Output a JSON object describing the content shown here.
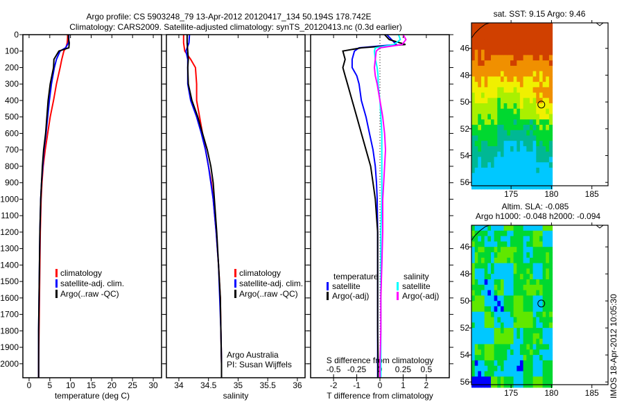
{
  "header": {
    "title_line1": "Argo profile: CS 5903248_79 13-Apr-2012 20120417_134 50.194S 178.742E",
    "title_line2": "Climatology: CARS2009. Satellite-adjusted climatology: synTS_20120413.nc (0.3d earlier)"
  },
  "side_stamp": "IMOS 18-Apr-2012 10:05:30",
  "colors": {
    "climatology": "#ff0000",
    "satellite": "#0000ff",
    "argo": "#000000",
    "sal_satellite": "#00ffff",
    "sal_argo": "#ff00ff"
  },
  "chart_data": [
    {
      "id": "temperature",
      "type": "line",
      "xlabel": "temperature (deg C)",
      "xlim": [
        -1.5,
        32
      ],
      "xticks": [
        "0",
        "5",
        "10",
        "15",
        "20",
        "25",
        "30"
      ],
      "ylim": [
        0,
        2085
      ],
      "yticks": [
        "0",
        "100",
        "200",
        "300",
        "400",
        "500",
        "600",
        "700",
        "800",
        "900",
        "1000",
        "1100",
        "1200",
        "1300",
        "1400",
        "1500",
        "1600",
        "1700",
        "1800",
        "1900",
        "2000"
      ],
      "legend": [
        "climatology",
        "satellite-adj. clim.",
        "Argo(..raw -QC)"
      ],
      "depth": [
        0,
        20,
        50,
        80,
        100,
        150,
        200,
        300,
        400,
        500,
        600,
        700,
        800,
        900,
        1000,
        1200,
        1400,
        1600,
        1800,
        2000,
        2085
      ],
      "series": [
        {
          "name": "climatology",
          "color_key": "climatology",
          "values": [
            9.3,
            9.3,
            9.2,
            8.9,
            8.4,
            7.9,
            7.5,
            6.6,
            5.9,
            5.1,
            4.5,
            3.9,
            3.4,
            3.1,
            2.9,
            2.7,
            2.6,
            2.5,
            2.4,
            2.3,
            2.3
          ]
        },
        {
          "name": "satellite-adj. clim.",
          "color_key": "satellite",
          "values": [
            9.6,
            9.6,
            9.5,
            8.8,
            7.5,
            6.6,
            6.1,
            5.4,
            4.9,
            4.5,
            4.1,
            3.6,
            3.3,
            3.0,
            2.8,
            2.6,
            2.5,
            2.4,
            2.3,
            2.3,
            2.3
          ]
        },
        {
          "name": "Argo(..raw -QC)",
          "color_key": "argo",
          "values": [
            9.5,
            9.5,
            9.7,
            9.6,
            7.2,
            6.0,
            5.9,
            5.1,
            4.6,
            4.3,
            4.0,
            3.5,
            3.2,
            3.0,
            2.8,
            2.6,
            2.5,
            2.4,
            2.3,
            2.3,
            2.3
          ]
        }
      ]
    },
    {
      "id": "salinity",
      "type": "line",
      "xlabel": "salinity",
      "xlim": [
        33.79,
        36.13
      ],
      "xticks": [
        "34",
        "34.5",
        "35",
        "35.5",
        "36"
      ],
      "ylim": [
        0,
        2085
      ],
      "legend": [
        "climatology",
        "satellite-adj. clim.",
        "Argo(..raw -QC)"
      ],
      "annotation": [
        "Argo Australia",
        "PI: Susan Wijffels"
      ],
      "depth": [
        0,
        50,
        100,
        150,
        200,
        300,
        400,
        500,
        600,
        700,
        800,
        900,
        1000,
        1200,
        1400,
        1600,
        1800,
        2000,
        2085
      ],
      "series": [
        {
          "name": "climatology",
          "color_key": "climatology",
          "values": [
            34.08,
            34.08,
            34.1,
            34.2,
            34.28,
            34.3,
            34.3,
            34.35,
            34.4,
            34.45,
            34.5,
            34.55,
            34.58,
            34.63,
            34.67,
            34.7,
            34.71,
            34.72,
            34.72
          ]
        },
        {
          "name": "satellite-adj. clim.",
          "color_key": "satellite",
          "values": [
            34.18,
            34.17,
            34.12,
            34.15,
            34.15,
            34.15,
            34.2,
            34.3,
            34.38,
            34.45,
            34.5,
            34.54,
            34.58,
            34.63,
            34.67,
            34.69,
            34.71,
            34.72,
            34.72
          ]
        },
        {
          "name": "Argo(..raw -QC)",
          "color_key": "argo",
          "values": [
            34.14,
            34.14,
            34.15,
            34.16,
            34.15,
            34.16,
            34.22,
            34.32,
            34.4,
            34.48,
            34.54,
            34.58,
            34.6,
            34.64,
            34.67,
            34.7,
            34.71,
            34.72,
            34.72
          ]
        }
      ]
    },
    {
      "id": "difference",
      "type": "line",
      "xlabel": "T difference from climatology",
      "xlim": [
        -2.99,
        2.99
      ],
      "xticks": [
        "-2",
        "-1",
        "0",
        "1",
        "2"
      ],
      "s_label": "S difference from climatology",
      "s_ticks": [
        "-0.5",
        "-0.25",
        "0",
        "0.25",
        "0.5"
      ],
      "ylim": [
        0,
        2085
      ],
      "legend": {
        "temperature_title": "temperature",
        "salinity_title": "salinity",
        "items": [
          "satellite",
          "Argo(-adj)",
          "satellite",
          "Argo(-adj)"
        ]
      },
      "depth": [
        0,
        30,
        60,
        80,
        100,
        150,
        200,
        250,
        300,
        400,
        500,
        600,
        700,
        800,
        900,
        1000,
        1200,
        1400,
        1600,
        1800,
        2000,
        2085
      ],
      "series": [
        {
          "name": "T satellite",
          "color_key": "satellite",
          "units": "T",
          "values": [
            0.3,
            0.5,
            0.7,
            -0.9,
            -1.1,
            -1.2,
            -1.2,
            -1.0,
            -0.9,
            -0.8,
            -0.6,
            -0.45,
            -0.3,
            -0.2,
            -0.15,
            -0.12,
            -0.1,
            -0.1,
            -0.1,
            -0.1,
            -0.1,
            -0.1
          ]
        },
        {
          "name": "T Argo(-adj)",
          "color_key": "argo",
          "units": "T",
          "values": [
            0.2,
            0.4,
            1.1,
            -0.8,
            -1.6,
            -1.5,
            -1.6,
            -1.5,
            -1.4,
            -1.2,
            -1.0,
            -0.8,
            -0.6,
            -0.4,
            -0.3,
            -0.2,
            -0.1,
            -0.1,
            -0.1,
            -0.1,
            -0.08,
            -0.08
          ]
        },
        {
          "name": "S satellite",
          "color_key": "sal_satellite",
          "units": "S",
          "values": [
            0.2,
            0.22,
            0.15,
            -0.05,
            -0.06,
            -0.05,
            -0.03,
            -0.02,
            -0.02,
            0.0,
            0.01,
            0.02,
            0.02,
            0.02,
            0.02,
            0.02,
            0.01,
            0.01,
            0.01,
            0.01,
            0.01,
            0.01
          ]
        },
        {
          "name": "S Argo(-adj)",
          "color_key": "sal_argo",
          "units": "S",
          "values": [
            0.25,
            0.28,
            0.24,
            0.0,
            -0.04,
            -0.05,
            -0.06,
            -0.05,
            -0.03,
            0.0,
            0.03,
            0.05,
            0.06,
            0.05,
            0.04,
            0.03,
            0.03,
            0.02,
            0.01,
            0.01,
            0.0,
            0.0
          ]
        }
      ]
    },
    {
      "id": "sst_map",
      "type": "heatmap",
      "title": "sat. SST: 9.15 Argo: 9.46",
      "xticks": [
        "175",
        "180",
        "185"
      ],
      "yticks": [
        "46",
        "48",
        "50",
        "52",
        "54",
        "56"
      ],
      "lon_range": [
        170.1,
        187.0
      ],
      "lat_range": [
        -44.1,
        -56.25
      ],
      "argo_position": [
        178.742,
        -50.194
      ],
      "colormap": [
        "#00c8ff",
        "#00b894",
        "#00d830",
        "#aaf000",
        "#f0f000",
        "#f09000",
        "#d04000",
        "#a00000"
      ]
    },
    {
      "id": "sla_map",
      "type": "heatmap",
      "title_line1": "Altim. SLA: -0.085",
      "title_line2": "Argo h1000: -0.048 h2000: -0.094",
      "xticks": [
        "175",
        "180",
        "185"
      ],
      "yticks": [
        "46",
        "48",
        "50",
        "52",
        "54",
        "56"
      ],
      "lon_range": [
        170.1,
        187.0
      ],
      "lat_range": [
        -44.4,
        -56.2
      ],
      "argo_position": [
        178.742,
        -50.194
      ],
      "colormap": [
        "#0000ff",
        "#00c8ff",
        "#00d830",
        "#60e800",
        "#aaf000",
        "#f0f000"
      ]
    }
  ]
}
